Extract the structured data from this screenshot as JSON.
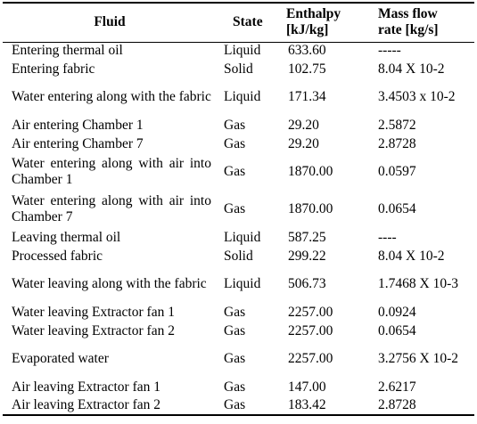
{
  "headers": {
    "fluid": "Fluid",
    "state": "State",
    "enthalpy_line1": "Enthalpy",
    "enthalpy_line2": "[kJ/kg]",
    "mass_line1": "Mass flow",
    "mass_line2": "rate [kg/s]"
  },
  "rows": [
    {
      "fluid": "Entering thermal oil",
      "state": "Liquid",
      "enthalpy": "633.60",
      "mass_flow": "-----",
      "h": 20
    },
    {
      "fluid": "Entering fabric",
      "state": "Solid",
      "enthalpy": "102.75",
      "mass_flow": "8.04 X 10-2",
      "h": 21
    },
    {
      "fluid": "Water entering along with the fabric",
      "state": "Liquid",
      "enthalpy": "171.34",
      "mass_flow": "3.4503 x 10-2",
      "h": 42
    },
    {
      "fluid": "Air entering Chamber 1",
      "state": "Gas",
      "enthalpy": "29.20",
      "mass_flow": "2.5872",
      "h": 21
    },
    {
      "fluid": "Air entering Chamber 7",
      "state": "Gas",
      "enthalpy": "29.20",
      "mass_flow": "2.8728",
      "h": 21
    },
    {
      "fluid": "Water entering along with air into Chamber 1",
      "state": "Gas",
      "enthalpy": "1870.00",
      "mass_flow": "0.0597",
      "h": 42
    },
    {
      "fluid": "Water entering along with air into Chamber 7",
      "state": "Gas",
      "enthalpy": "1870.00",
      "mass_flow": "0.0654",
      "h": 42
    },
    {
      "fluid": "Leaving thermal oil",
      "state": "Liquid",
      "enthalpy": "587.25",
      "mass_flow": "----",
      "h": 21
    },
    {
      "fluid": "Processed fabric",
      "state": "Solid",
      "enthalpy": "299.22",
      "mass_flow": "8.04 X 10-2",
      "h": 21
    },
    {
      "fluid": "Water leaving along with the fabric",
      "state": "Liquid",
      "enthalpy": "506.73",
      "mass_flow": "1.7468 X 10-3",
      "h": 42
    },
    {
      "fluid": "Water leaving Extractor fan 1",
      "state": "Gas",
      "enthalpy": "2257.00",
      "mass_flow": "0.0924",
      "h": 21
    },
    {
      "fluid": "Water leaving Extractor fan 2",
      "state": "Gas",
      "enthalpy": "2257.00",
      "mass_flow": "0.0654",
      "h": 21
    },
    {
      "fluid": "Evaporated water",
      "state": "Gas",
      "enthalpy": "2257.00",
      "mass_flow": "3.2756 X 10-2",
      "h": 42
    },
    {
      "fluid": "Air leaving Extractor fan 1",
      "state": "Gas",
      "enthalpy": "147.00",
      "mass_flow": "2.6217",
      "h": 21
    },
    {
      "fluid": "Air leaving Extractor fan 2",
      "state": "Gas",
      "enthalpy": "183.42",
      "mass_flow": "2.8728",
      "h": 21
    }
  ]
}
